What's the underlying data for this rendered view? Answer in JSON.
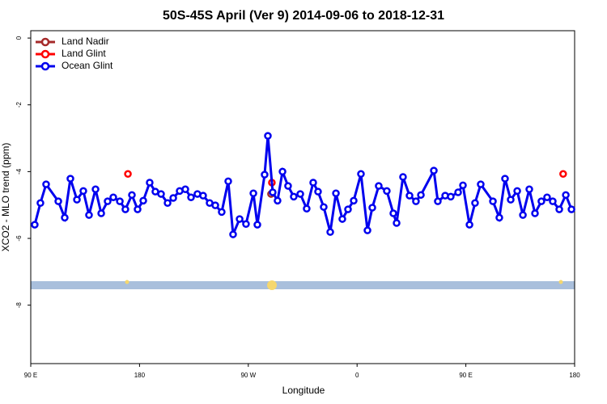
{
  "chart_data": {
    "type": "line",
    "title": "50S-45S April (Ver 9)   2014-09-06 to 2018-12-31",
    "x_label": "Longitude",
    "y_label": "XCO2 - MLO trend (ppm)",
    "xlim": [
      90,
      540
    ],
    "xticks": [
      {
        "value": 90,
        "label": "90 E"
      },
      180,
      {
        "value": 270,
        "label": "90 W"
      },
      {
        "value": 360,
        "label": "0"
      },
      {
        "value": 450,
        "label": "90 E"
      },
      {
        "value": 540,
        "label": "180"
      }
    ],
    "ylim": [
      -9.75,
      0.22
    ],
    "yticks": [
      0,
      -2,
      -4,
      -6,
      -8
    ],
    "legend": "top-left",
    "series": [
      {
        "name": "Land Nadir",
        "color": "#a52a2a",
        "line": false,
        "x": [
          288.8
        ],
        "values": [
          -4.67
        ]
      },
      {
        "name": "Land Glint",
        "color": "#ff0000",
        "line": false,
        "x": [
          170.4,
          289.5,
          530.5
        ],
        "values": [
          -4.07,
          -4.33,
          -4.07
        ]
      },
      {
        "name": "Ocean Glint",
        "color": "#0000ee",
        "line": true,
        "x": [
          93.3,
          98.0,
          102.7,
          112.8,
          118.1,
          122.8,
          128.2,
          133.5,
          138.2,
          143.6,
          148.3,
          153.6,
          158.3,
          163.7,
          168.3,
          173.7,
          178.4,
          183.1,
          188.4,
          193.1,
          197.8,
          203.2,
          207.9,
          213.2,
          217.9,
          222.6,
          227.9,
          232.6,
          238.0,
          242.7,
          248.0,
          253.4,
          257.4,
          262.8,
          268.1,
          274.2,
          277.5,
          283.5,
          286.2,
          290.2,
          294.2,
          298.3,
          302.9,
          307.6,
          313.0,
          318.3,
          323.7,
          327.7,
          332.4,
          337.8,
          342.5,
          347.8,
          352.5,
          357.2,
          363.2,
          368.6,
          372.6,
          377.9,
          384.6,
          390.0,
          392.7,
          398.0,
          403.4,
          408.7,
          412.8,
          423.5,
          426.8,
          432.9,
          437.5,
          443.6,
          447.6,
          453.0,
          457.6,
          462.3,
          472.4,
          477.7,
          482.4,
          487.1,
          492.5,
          497.2,
          502.5,
          507.2,
          512.5,
          517.2,
          521.9,
          527.3,
          532.7,
          537.4
        ],
        "values": [
          -5.59,
          -4.94,
          -4.38,
          -4.89,
          -5.38,
          -4.21,
          -4.84,
          -4.58,
          -5.3,
          -4.53,
          -5.25,
          -4.89,
          -4.77,
          -4.89,
          -5.13,
          -4.7,
          -5.13,
          -4.87,
          -4.33,
          -4.6,
          -4.67,
          -4.94,
          -4.79,
          -4.58,
          -4.53,
          -4.77,
          -4.67,
          -4.72,
          -4.94,
          -5.01,
          -5.21,
          -4.29,
          -5.88,
          -5.42,
          -5.57,
          -4.65,
          -5.59,
          -4.09,
          -2.93,
          -4.62,
          -4.87,
          -4.0,
          -4.43,
          -4.75,
          -4.67,
          -5.11,
          -4.33,
          -4.6,
          -5.06,
          -5.81,
          -4.65,
          -5.42,
          -5.13,
          -4.87,
          -4.07,
          -5.76,
          -5.08,
          -4.43,
          -4.58,
          -5.25,
          -5.54,
          -4.16,
          -4.72,
          -4.89,
          -4.7,
          -3.97,
          -4.89,
          -4.72,
          -4.75,
          -4.62,
          -4.41,
          -5.59,
          -4.94,
          -4.38,
          -4.89,
          -5.38,
          -4.21,
          -4.84,
          -4.58,
          -5.3,
          -4.53,
          -5.25,
          -4.89,
          -4.77,
          -4.89,
          -5.13,
          -4.7,
          -5.13
        ]
      }
    ]
  }
}
